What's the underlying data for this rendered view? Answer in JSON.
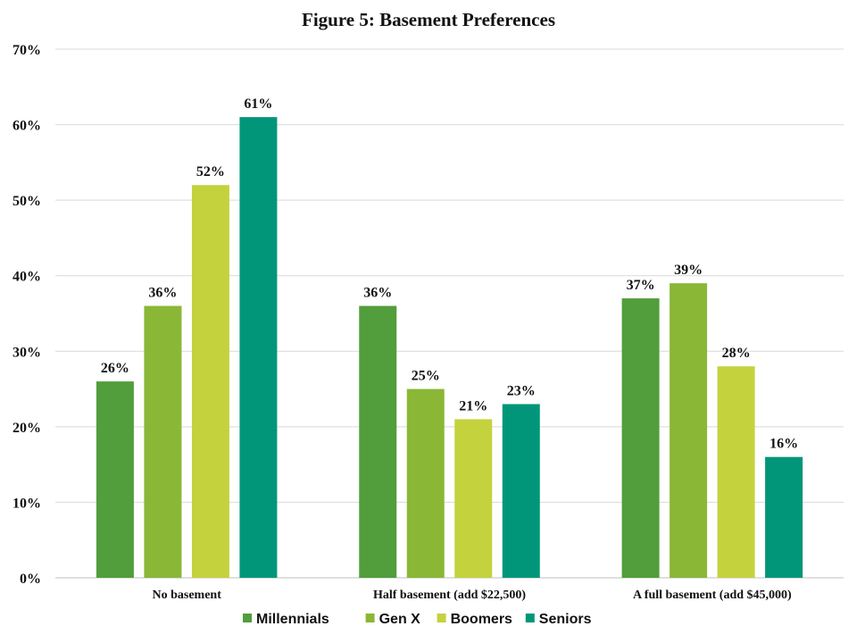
{
  "chart_data": {
    "type": "bar",
    "title": "Figure 5: Basement Preferences",
    "categories": [
      "No basement",
      "Half basement (add $22,500)",
      "A full basement (add $45,000)"
    ],
    "series": [
      {
        "name": "Millennials",
        "color": "#529D3C",
        "values": [
          26,
          36,
          37
        ]
      },
      {
        "name": "Gen X",
        "color": "#8AB736",
        "values": [
          36,
          25,
          39
        ]
      },
      {
        "name": "Boomers",
        "color": "#C4D23E",
        "values": [
          52,
          21,
          28
        ]
      },
      {
        "name": "Seniors",
        "color": "#019679",
        "values": [
          61,
          23,
          16
        ]
      }
    ],
    "ylim": [
      0,
      70
    ],
    "yticks": [
      "0%",
      "10%",
      "20%",
      "30%",
      "40%",
      "50%",
      "60%",
      "70%"
    ],
    "value_suffix": "%",
    "grid": true,
    "legend_position": "bottom",
    "gridline_color": "#d9d9d9"
  }
}
